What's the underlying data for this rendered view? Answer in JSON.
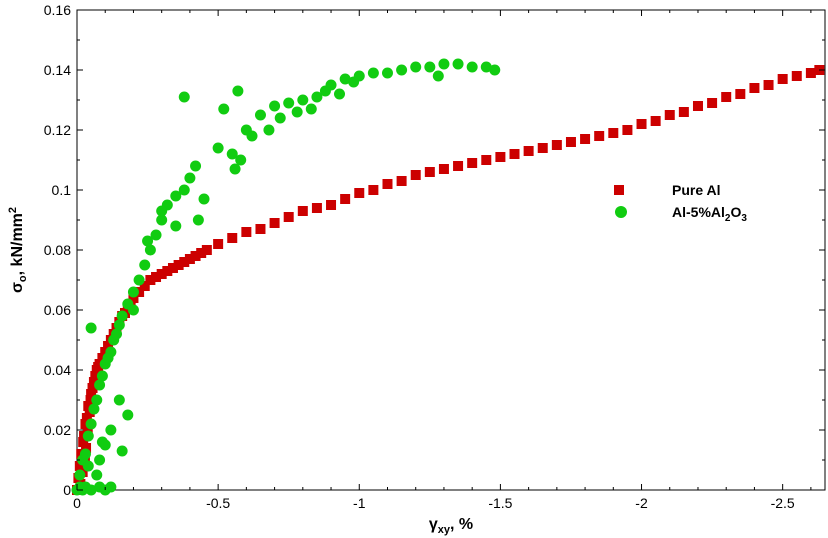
{
  "chart_data": {
    "type": "scatter",
    "title": "",
    "xlabel": {
      "main": "γ",
      "sub": "xy",
      "rest": ", %"
    },
    "ylabel": {
      "main": "σ",
      "sub": "o",
      "rest": ", kN/mm",
      "sup": "2"
    },
    "xlim": [
      0,
      -2.65
    ],
    "ylim": [
      0,
      0.16
    ],
    "x_ticks": [
      0,
      -0.5,
      -1,
      -1.5,
      -2,
      -2.5
    ],
    "x_tick_labels": [
      "0",
      "-0.5",
      "-1",
      "-1.5",
      "-2",
      "-2.5"
    ],
    "y_ticks": [
      0,
      0.02,
      0.04,
      0.06,
      0.08,
      0.1,
      0.12,
      0.14,
      0.16
    ],
    "y_tick_labels": [
      "0",
      "0.02",
      "0.04",
      "0.06",
      "0.08",
      "0.1",
      "0.12",
      "0.14",
      "0.16"
    ],
    "grid": false,
    "legend_position": "right",
    "series": [
      {
        "name": "Pure Al",
        "legend_label": {
          "text": "Pure Al"
        },
        "marker": "square",
        "color": "#cc0000",
        "points": [
          [
            0,
            0
          ],
          [
            -0.005,
            0.004
          ],
          [
            -0.01,
            0.008
          ],
          [
            -0.012,
            0.002
          ],
          [
            -0.015,
            0.012
          ],
          [
            -0.02,
            0.006
          ],
          [
            -0.022,
            0.016
          ],
          [
            -0.025,
            0.018
          ],
          [
            -0.028,
            0.01
          ],
          [
            -0.03,
            0.022
          ],
          [
            -0.032,
            0.014
          ],
          [
            -0.035,
            0.024
          ],
          [
            -0.038,
            0.02
          ],
          [
            -0.04,
            0.028
          ],
          [
            -0.045,
            0.026
          ],
          [
            -0.048,
            0.03
          ],
          [
            -0.05,
            0.032
          ],
          [
            -0.055,
            0.034
          ],
          [
            -0.06,
            0.036
          ],
          [
            -0.065,
            0.038
          ],
          [
            -0.07,
            0.04
          ],
          [
            -0.075,
            0.041
          ],
          [
            -0.08,
            0.042
          ],
          [
            -0.09,
            0.044
          ],
          [
            -0.1,
            0.046
          ],
          [
            -0.11,
            0.048
          ],
          [
            -0.12,
            0.05
          ],
          [
            -0.13,
            0.052
          ],
          [
            -0.14,
            0.054
          ],
          [
            -0.15,
            0.056
          ],
          [
            -0.16,
            0.058
          ],
          [
            -0.17,
            0.059
          ],
          [
            -0.18,
            0.061
          ],
          [
            -0.19,
            0.062
          ],
          [
            -0.2,
            0.064
          ],
          [
            -0.22,
            0.066
          ],
          [
            -0.24,
            0.068
          ],
          [
            -0.26,
            0.07
          ],
          [
            -0.28,
            0.071
          ],
          [
            -0.3,
            0.072
          ],
          [
            -0.32,
            0.073
          ],
          [
            -0.34,
            0.074
          ],
          [
            -0.36,
            0.075
          ],
          [
            -0.38,
            0.076
          ],
          [
            -0.4,
            0.077
          ],
          [
            -0.42,
            0.078
          ],
          [
            -0.44,
            0.079
          ],
          [
            -0.46,
            0.08
          ],
          [
            -0.5,
            0.082
          ],
          [
            -0.55,
            0.084
          ],
          [
            -0.6,
            0.086
          ],
          [
            -0.65,
            0.087
          ],
          [
            -0.7,
            0.089
          ],
          [
            -0.75,
            0.091
          ],
          [
            -0.8,
            0.093
          ],
          [
            -0.85,
            0.094
          ],
          [
            -0.9,
            0.095
          ],
          [
            -0.95,
            0.097
          ],
          [
            -1.0,
            0.099
          ],
          [
            -1.05,
            0.1
          ],
          [
            -1.1,
            0.102
          ],
          [
            -1.15,
            0.103
          ],
          [
            -1.2,
            0.105
          ],
          [
            -1.25,
            0.106
          ],
          [
            -1.3,
            0.107
          ],
          [
            -1.35,
            0.108
          ],
          [
            -1.4,
            0.109
          ],
          [
            -1.45,
            0.11
          ],
          [
            -1.5,
            0.111
          ],
          [
            -1.55,
            0.112
          ],
          [
            -1.6,
            0.113
          ],
          [
            -1.65,
            0.114
          ],
          [
            -1.7,
            0.115
          ],
          [
            -1.75,
            0.116
          ],
          [
            -1.8,
            0.117
          ],
          [
            -1.85,
            0.118
          ],
          [
            -1.9,
            0.119
          ],
          [
            -1.95,
            0.12
          ],
          [
            -2.0,
            0.122
          ],
          [
            -2.05,
            0.123
          ],
          [
            -2.1,
            0.125
          ],
          [
            -2.15,
            0.126
          ],
          [
            -2.2,
            0.128
          ],
          [
            -2.25,
            0.129
          ],
          [
            -2.3,
            0.131
          ],
          [
            -2.35,
            0.132
          ],
          [
            -2.4,
            0.134
          ],
          [
            -2.45,
            0.135
          ],
          [
            -2.5,
            0.137
          ],
          [
            -2.55,
            0.138
          ],
          [
            -2.6,
            0.139
          ],
          [
            -2.63,
            0.14
          ]
        ]
      },
      {
        "name": "Al-5%Al2O3",
        "legend_label": {
          "text": "Al-5%Al",
          "sub1": "2",
          "mid": "O",
          "sub2": "3"
        },
        "marker": "circle",
        "color": "#11cc11",
        "points": [
          [
            0,
            0
          ],
          [
            -0.01,
            0.001
          ],
          [
            -0.02,
            0.0
          ],
          [
            -0.03,
            0.001
          ],
          [
            -0.05,
            0.0
          ],
          [
            -0.08,
            0.001
          ],
          [
            -0.1,
            0.0
          ],
          [
            -0.12,
            0.001
          ],
          [
            -0.01,
            0.005
          ],
          [
            -0.02,
            0.01
          ],
          [
            -0.03,
            0.012
          ],
          [
            -0.04,
            0.018
          ],
          [
            -0.05,
            0.022
          ],
          [
            -0.06,
            0.027
          ],
          [
            -0.07,
            0.03
          ],
          [
            -0.08,
            0.035
          ],
          [
            -0.09,
            0.038
          ],
          [
            -0.1,
            0.042
          ],
          [
            -0.11,
            0.044
          ],
          [
            -0.12,
            0.046
          ],
          [
            -0.13,
            0.05
          ],
          [
            -0.14,
            0.052
          ],
          [
            -0.15,
            0.055
          ],
          [
            -0.16,
            0.058
          ],
          [
            -0.18,
            0.062
          ],
          [
            -0.2,
            0.066
          ],
          [
            -0.22,
            0.07
          ],
          [
            -0.24,
            0.075
          ],
          [
            -0.26,
            0.08
          ],
          [
            -0.28,
            0.085
          ],
          [
            -0.3,
            0.09
          ],
          [
            -0.32,
            0.095
          ],
          [
            -0.35,
            0.098
          ],
          [
            -0.38,
            0.1
          ],
          [
            -0.4,
            0.104
          ],
          [
            -0.42,
            0.108
          ],
          [
            -0.38,
            0.131
          ],
          [
            -0.45,
            0.097
          ],
          [
            -0.15,
            0.03
          ],
          [
            -0.12,
            0.02
          ],
          [
            -0.1,
            0.015
          ],
          [
            -0.08,
            0.01
          ],
          [
            -0.16,
            0.013
          ],
          [
            -0.18,
            0.025
          ],
          [
            -0.05,
            0.054
          ],
          [
            -0.04,
            0.008
          ],
          [
            -0.07,
            0.005
          ],
          [
            -0.09,
            0.016
          ],
          [
            -0.2,
            0.06
          ],
          [
            -0.25,
            0.083
          ],
          [
            -0.3,
            0.093
          ],
          [
            -0.35,
            0.088
          ],
          [
            -0.43,
            0.09
          ],
          [
            -0.5,
            0.114
          ],
          [
            -0.52,
            0.127
          ],
          [
            -0.55,
            0.112
          ],
          [
            -0.57,
            0.133
          ],
          [
            -0.6,
            0.12
          ],
          [
            -0.62,
            0.118
          ],
          [
            -0.65,
            0.125
          ],
          [
            -0.68,
            0.12
          ],
          [
            -0.7,
            0.128
          ],
          [
            -0.72,
            0.124
          ],
          [
            -0.75,
            0.129
          ],
          [
            -0.78,
            0.126
          ],
          [
            -0.8,
            0.13
          ],
          [
            -0.83,
            0.127
          ],
          [
            -0.85,
            0.131
          ],
          [
            -0.88,
            0.133
          ],
          [
            -0.9,
            0.135
          ],
          [
            -0.93,
            0.132
          ],
          [
            -0.95,
            0.137
          ],
          [
            -0.98,
            0.136
          ],
          [
            -1.0,
            0.138
          ],
          [
            -1.05,
            0.139
          ],
          [
            -1.1,
            0.139
          ],
          [
            -1.15,
            0.14
          ],
          [
            -1.2,
            0.141
          ],
          [
            -1.25,
            0.141
          ],
          [
            -1.3,
            0.142
          ],
          [
            -1.35,
            0.142
          ],
          [
            -1.4,
            0.141
          ],
          [
            -1.45,
            0.141
          ],
          [
            -1.48,
            0.14
          ],
          [
            -1.28,
            0.138
          ],
          [
            -0.56,
            0.107
          ],
          [
            -0.58,
            0.11
          ]
        ]
      }
    ]
  }
}
